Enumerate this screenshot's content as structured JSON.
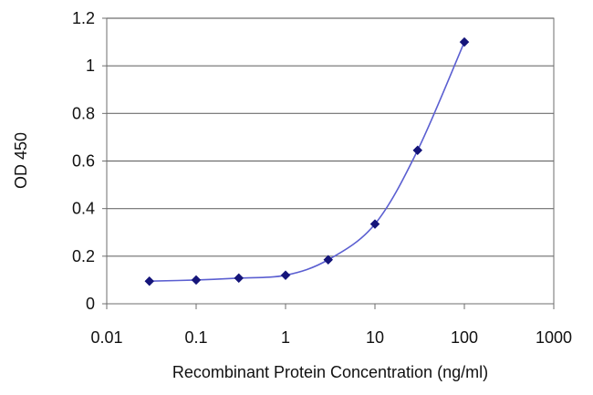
{
  "chart_data": {
    "type": "line",
    "title": "",
    "xlabel": "Recombinant Protein Concentration (ng/ml)",
    "ylabel": "OD 450",
    "x_scale": "log",
    "xlim": [
      0.01,
      1000
    ],
    "ylim": [
      0,
      1.2
    ],
    "x_ticks": [
      "0.01",
      "0.1",
      "1",
      "10",
      "100",
      "1000"
    ],
    "y_ticks": [
      "0",
      "0.2",
      "0.4",
      "0.6",
      "0.8",
      "1",
      "1.2"
    ],
    "grid": "horizontal",
    "legend": "none",
    "series": [
      {
        "x": [
          0.03,
          0.1,
          0.3,
          1,
          3,
          10,
          30,
          100
        ],
        "y": [
          0.095,
          0.1,
          0.108,
          0.12,
          0.185,
          0.335,
          0.645,
          1.1
        ]
      }
    ],
    "colors": {
      "line": "#5b5fd1",
      "marker": "#15157a",
      "grid": "#6e6e6e",
      "axis": "#6e6e6e"
    }
  }
}
